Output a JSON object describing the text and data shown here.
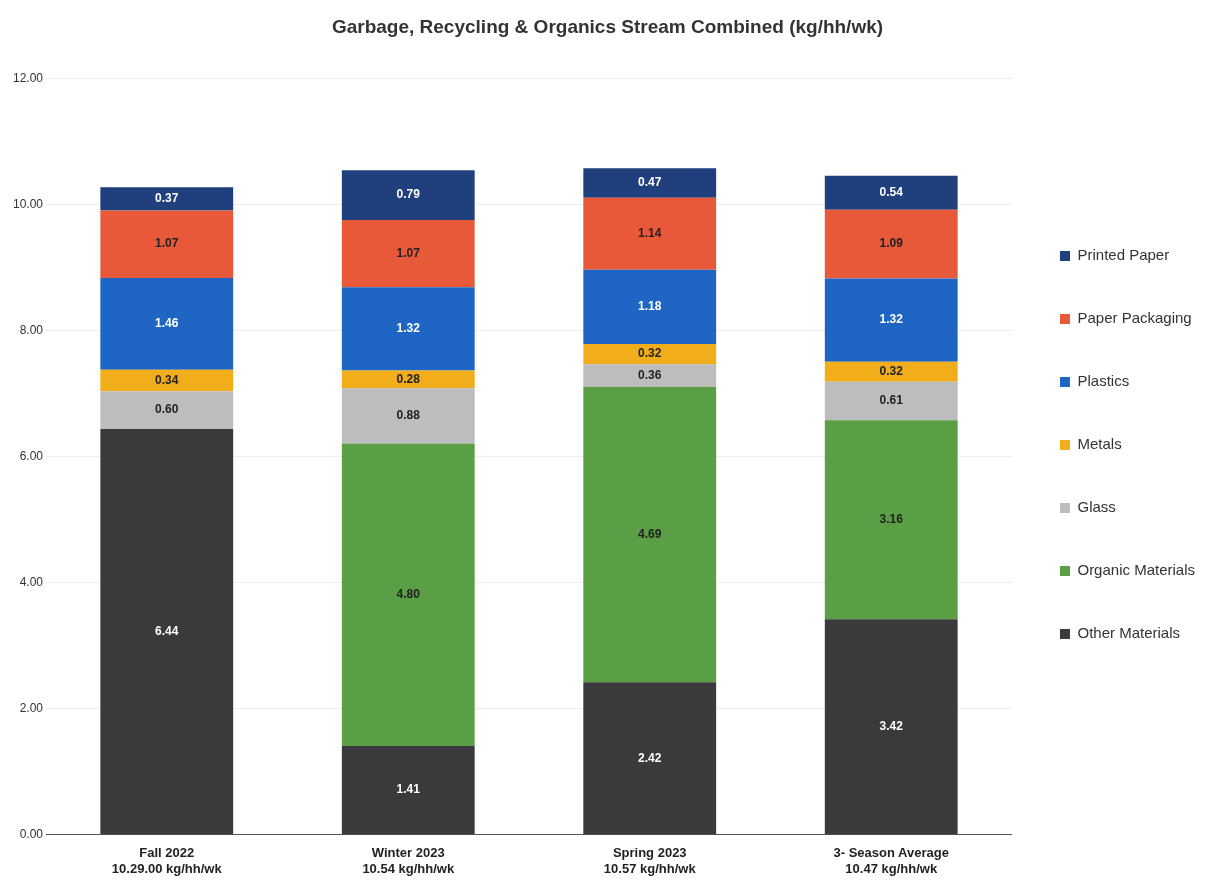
{
  "chart_data": {
    "type": "bar",
    "stacked": true,
    "title": "Garbage, Recycling & Organics Stream Combined (kg/hh/wk)",
    "categories": [
      "Fall 2022\n10.29.00 kg/hh/wk",
      "Winter 2023\n10.54 kg/hh/wk",
      "Spring 2023\n10.57 kg/hh/wk",
      "3- Season Average\n10.47 kg/hh/wk"
    ],
    "series": [
      {
        "name": "Other Materials",
        "color": "#3a3a3c",
        "values": [
          6.44,
          1.41,
          2.42,
          3.42
        ],
        "value_labels": [
          "6.44",
          "1.41",
          "2.42",
          "3.42"
        ]
      },
      {
        "name": "Organic Materials",
        "color": "#5a9e45",
        "values": [
          null,
          4.8,
          4.69,
          3.16
        ],
        "value_labels": [
          null,
          "4.80",
          "4.69",
          "3.16"
        ]
      },
      {
        "name": "Glass",
        "color": "#bdbdbf",
        "values": [
          0.6,
          0.88,
          0.36,
          0.61
        ],
        "value_labels": [
          "0.60",
          "0.88",
          "0.36",
          "0.61"
        ]
      },
      {
        "name": "Metals",
        "color": "#f2ad1b",
        "values": [
          0.34,
          0.28,
          0.32,
          0.32
        ],
        "value_labels": [
          "0.34",
          "0.28",
          "0.32",
          "0.32"
        ]
      },
      {
        "name": "Plastics",
        "color": "#1f66c4",
        "values": [
          1.46,
          1.32,
          1.18,
          1.32
        ],
        "value_labels": [
          "1.46",
          "1.32",
          "1.18",
          "1.32"
        ]
      },
      {
        "name": "Paper Packaging",
        "color": "#e8593a",
        "values": [
          1.07,
          1.07,
          1.14,
          1.09
        ],
        "value_labels": [
          "1.07",
          "1.07",
          "1.14",
          "1.09"
        ]
      },
      {
        "name": "Printed Paper",
        "color": "#1f3f7d",
        "values": [
          0.37,
          0.79,
          0.47,
          0.54
        ],
        "value_labels": [
          "0.37",
          "0.79",
          "0.47",
          "0.54"
        ]
      }
    ],
    "ylim": [
      0,
      12
    ],
    "yticks": [
      {
        "value": 0,
        "label": "0.00"
      },
      {
        "value": 2,
        "label": "2.00"
      },
      {
        "value": 4,
        "label": "4.00"
      },
      {
        "value": 6,
        "label": "6.00"
      },
      {
        "value": 8,
        "label": "8.00"
      },
      {
        "value": 10,
        "label": "10.00"
      },
      {
        "value": 12,
        "label": "12.00"
      }
    ],
    "grid": "y",
    "legend": "right"
  }
}
